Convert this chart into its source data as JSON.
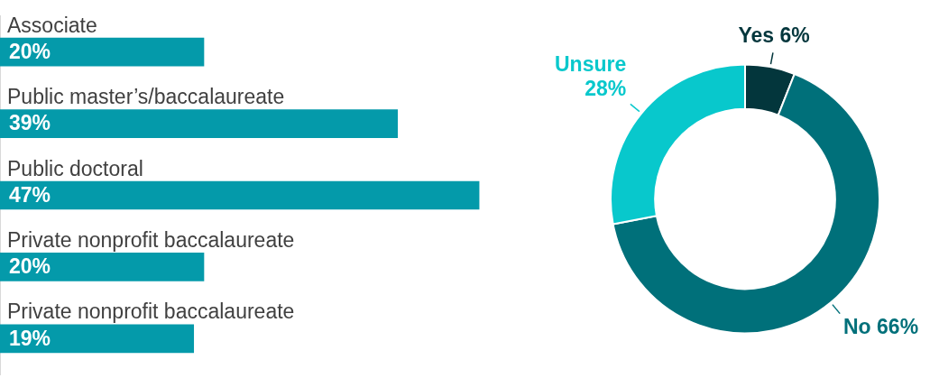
{
  "chart_data": [
    {
      "type": "bar",
      "orientation": "horizontal",
      "categories": [
        "Associate",
        "Public master’s/baccalaureate",
        "Public doctoral",
        "Private nonprofit baccalaureate",
        "Private nonprofit baccalaureate"
      ],
      "values": [
        20,
        39,
        47,
        20,
        19
      ],
      "color": "#049aaa",
      "value_labels": [
        "20%",
        "39%",
        "47%",
        "20%",
        "19%"
      ]
    },
    {
      "type": "donut",
      "categories": [
        "Yes",
        "No",
        "Unsure"
      ],
      "values": [
        6,
        66,
        28
      ],
      "colors": [
        "#03363c",
        "#00707a",
        "#08c8cc"
      ],
      "value_labels": [
        "6%",
        "66%",
        "28%"
      ]
    }
  ]
}
